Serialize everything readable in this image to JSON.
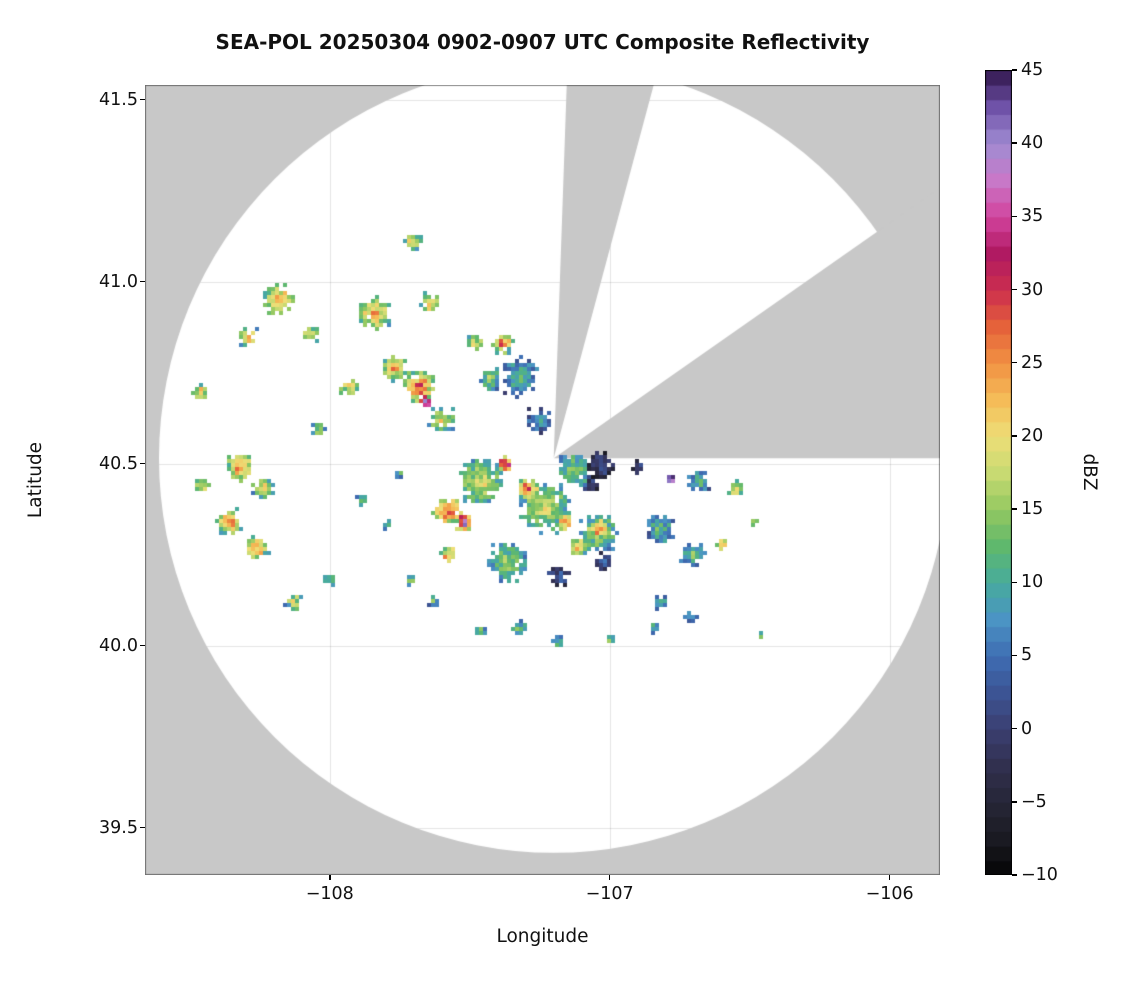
{
  "chart_data": {
    "type": "heatmap",
    "title": "SEA-POL 20250304 0902-0907 UTC Composite Reflectivity",
    "xlabel": "Longitude",
    "ylabel": "Latitude",
    "xlim": [
      -108.66,
      -105.82
    ],
    "ylim": [
      39.37,
      41.54
    ],
    "grid": true,
    "xticks": {
      "values": [
        -108,
        -107,
        -106
      ],
      "labels": [
        "−108",
        "−107",
        "−106"
      ]
    },
    "yticks": {
      "values": [
        39.5,
        40.0,
        40.5,
        41.0,
        41.5
      ],
      "labels": [
        "39.5",
        "40.0",
        "40.5",
        "41.0",
        "41.5"
      ]
    },
    "colorbar": {
      "label": "dBZ",
      "min": -10,
      "max": 45,
      "ticks": {
        "values": [
          -10,
          -5,
          0,
          5,
          10,
          15,
          20,
          25,
          30,
          35,
          40,
          45
        ],
        "labels": [
          "−10",
          "−5",
          "0",
          "5",
          "10",
          "15",
          "20",
          "25",
          "30",
          "35",
          "40",
          "45"
        ]
      },
      "stops": [
        [
          -10,
          "#050505"
        ],
        [
          -7.5,
          "#1a1a22"
        ],
        [
          -5,
          "#262637"
        ],
        [
          -2.5,
          "#31304f"
        ],
        [
          0,
          "#3b3f71"
        ],
        [
          2.5,
          "#3c5494"
        ],
        [
          5,
          "#3f6db3"
        ],
        [
          7.5,
          "#4b94c4"
        ],
        [
          10,
          "#47ab9d"
        ],
        [
          12.5,
          "#5fb86d"
        ],
        [
          15,
          "#93c861"
        ],
        [
          17.5,
          "#c8da72"
        ],
        [
          20,
          "#eede77"
        ],
        [
          22.5,
          "#f5bc58"
        ],
        [
          25,
          "#f19243"
        ],
        [
          27.5,
          "#e5623a"
        ],
        [
          30,
          "#cc2e4e"
        ],
        [
          32.5,
          "#b01a62"
        ],
        [
          35,
          "#d2439e"
        ],
        [
          37.5,
          "#c878c8"
        ],
        [
          40,
          "#a08cd2"
        ],
        [
          42.5,
          "#6f52a8"
        ],
        [
          45,
          "#31164b"
        ]
      ]
    },
    "radar": {
      "center_lon": -107.2,
      "center_lat": 40.515,
      "radius_deg_lon": 1.41,
      "background_color": "#c8c8c8",
      "coverage_color": "#ffffff",
      "missing_sectors_azimuth_deg": [
        [
          2,
          15
        ],
        [
          55,
          90
        ]
      ]
    },
    "echo_fields": [
      "lon",
      "lat",
      "dbz_core",
      "spread_deg",
      "n_points",
      "falloff_dbz"
    ],
    "echoes": [
      [
        -108.18,
        40.95,
        26,
        0.055,
        90,
        16
      ],
      [
        -108.29,
        40.85,
        24,
        0.035,
        40,
        14
      ],
      [
        -108.07,
        40.86,
        21,
        0.03,
        30,
        12
      ],
      [
        -107.84,
        40.91,
        27,
        0.06,
        110,
        17
      ],
      [
        -107.64,
        40.94,
        24,
        0.035,
        40,
        14
      ],
      [
        -107.7,
        41.11,
        23,
        0.03,
        35,
        13
      ],
      [
        -107.68,
        40.71,
        32,
        0.055,
        120,
        20
      ],
      [
        -107.655,
        40.67,
        39,
        0.016,
        14,
        10
      ],
      [
        -107.77,
        40.76,
        26,
        0.045,
        60,
        15
      ],
      [
        -107.6,
        40.62,
        20,
        0.05,
        65,
        12
      ],
      [
        -107.93,
        40.71,
        25,
        0.03,
        35,
        14
      ],
      [
        -108.04,
        40.59,
        19,
        0.025,
        25,
        11
      ],
      [
        -108.32,
        40.49,
        28,
        0.05,
        95,
        16
      ],
      [
        -108.36,
        40.34,
        27,
        0.045,
        75,
        15
      ],
      [
        -108.26,
        40.27,
        27,
        0.04,
        60,
        15
      ],
      [
        -108.45,
        40.44,
        23,
        0.03,
        30,
        13
      ],
      [
        -108.46,
        40.7,
        24,
        0.028,
        30,
        14
      ],
      [
        -108.24,
        40.43,
        21,
        0.04,
        45,
        12
      ],
      [
        -108.13,
        40.12,
        23,
        0.025,
        25,
        13
      ],
      [
        -108.0,
        40.18,
        16,
        0.02,
        15,
        9
      ],
      [
        -107.38,
        40.83,
        29,
        0.035,
        45,
        17
      ],
      [
        -107.32,
        40.74,
        12,
        0.07,
        130,
        8
      ],
      [
        -107.25,
        40.62,
        9,
        0.045,
        60,
        7
      ],
      [
        -107.43,
        40.73,
        16,
        0.04,
        50,
        9
      ],
      [
        -107.48,
        40.83,
        20,
        0.03,
        30,
        11
      ],
      [
        -107.46,
        40.45,
        20,
        0.08,
        220,
        11
      ],
      [
        -107.23,
        40.38,
        19,
        0.09,
        260,
        11
      ],
      [
        -107.04,
        40.31,
        18,
        0.07,
        180,
        10
      ],
      [
        -107.36,
        40.23,
        17,
        0.07,
        170,
        10
      ],
      [
        -107.13,
        40.48,
        16,
        0.06,
        130,
        9
      ],
      [
        -107.58,
        40.37,
        31,
        0.05,
        110,
        18
      ],
      [
        -107.58,
        40.25,
        29,
        0.03,
        40,
        17
      ],
      [
        -107.29,
        40.43,
        30,
        0.04,
        70,
        18
      ],
      [
        -107.04,
        40.32,
        29,
        0.035,
        50,
        17
      ],
      [
        -107.16,
        40.34,
        27,
        0.03,
        40,
        15
      ],
      [
        -107.11,
        40.27,
        26,
        0.03,
        40,
        15
      ],
      [
        -107.52,
        40.34,
        44,
        0.028,
        60,
        26
      ],
      [
        -107.375,
        40.5,
        43,
        0.02,
        35,
        24
      ],
      [
        -107.18,
        40.19,
        4,
        0.04,
        60,
        6
      ],
      [
        -107.02,
        40.23,
        4,
        0.03,
        40,
        6
      ],
      [
        -107.03,
        40.49,
        2,
        0.05,
        70,
        6
      ],
      [
        -106.9,
        40.49,
        3,
        0.025,
        25,
        6
      ],
      [
        -107.07,
        40.44,
        3,
        0.03,
        35,
        6
      ],
      [
        -107.32,
        40.05,
        14,
        0.03,
        30,
        8
      ],
      [
        -107.18,
        40.01,
        12,
        0.025,
        20,
        8
      ],
      [
        -107.46,
        40.04,
        13,
        0.02,
        15,
        8
      ],
      [
        -107.0,
        40.02,
        15,
        0.015,
        12,
        8
      ],
      [
        -106.84,
        40.05,
        12,
        0.02,
        15,
        8
      ],
      [
        -107.625,
        40.12,
        13,
        0.02,
        15,
        8
      ],
      [
        -107.71,
        40.18,
        14,
        0.018,
        12,
        8
      ],
      [
        -107.88,
        40.4,
        15,
        0.02,
        15,
        9
      ],
      [
        -107.8,
        40.33,
        14,
        0.018,
        12,
        8
      ],
      [
        -107.75,
        40.47,
        13,
        0.015,
        10,
        8
      ],
      [
        -106.82,
        40.32,
        13,
        0.05,
        90,
        8
      ],
      [
        -106.7,
        40.25,
        14,
        0.045,
        70,
        9
      ],
      [
        -106.68,
        40.45,
        12,
        0.04,
        55,
        8
      ],
      [
        -106.55,
        40.43,
        25,
        0.025,
        30,
        14
      ],
      [
        -106.6,
        40.28,
        26,
        0.02,
        25,
        15
      ],
      [
        -106.78,
        40.46,
        45,
        0.008,
        8,
        6
      ],
      [
        -106.82,
        40.12,
        13,
        0.025,
        25,
        8
      ],
      [
        -106.71,
        40.08,
        12,
        0.02,
        15,
        8
      ],
      [
        -106.48,
        40.34,
        17,
        0.012,
        8,
        9
      ],
      [
        -106.46,
        40.03,
        14,
        0.01,
        6,
        8
      ]
    ]
  }
}
